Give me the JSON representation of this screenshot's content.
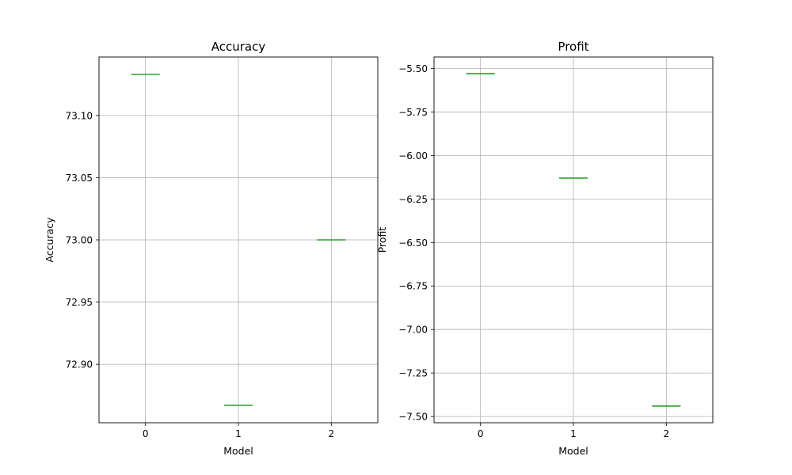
{
  "chart_data": [
    {
      "type": "box",
      "title": "Accuracy",
      "xlabel": "Model",
      "ylabel": "Accuracy",
      "categories": [
        "0",
        "1",
        "2"
      ],
      "values": [
        73.133,
        72.867,
        73.0
      ],
      "ylim": [
        72.853,
        73.147
      ],
      "yticks": [
        72.9,
        72.95,
        73.0,
        73.05,
        73.1
      ],
      "ytick_labels": [
        "72.90",
        "72.95",
        "73.00",
        "73.05",
        "73.10"
      ],
      "grid": true
    },
    {
      "type": "box",
      "title": "Profit",
      "xlabel": "Model",
      "ylabel": "Profit",
      "categories": [
        "0",
        "1",
        "2"
      ],
      "values": [
        -5.53,
        -6.13,
        -7.44
      ],
      "ylim": [
        -7.536,
        -5.434
      ],
      "yticks": [
        -7.5,
        -7.25,
        -7.0,
        -6.75,
        -6.5,
        -6.25,
        -6.0,
        -5.75,
        -5.5
      ],
      "ytick_labels": [
        "−7.50",
        "−7.25",
        "−7.00",
        "−6.75",
        "−6.50",
        "−6.25",
        "−6.00",
        "−5.75",
        "−5.50"
      ],
      "grid": true
    }
  ],
  "colors": {
    "grid": "#b0b0b0",
    "axes": "#000000",
    "median": "#2ca02c",
    "box": "#1f77b4"
  }
}
